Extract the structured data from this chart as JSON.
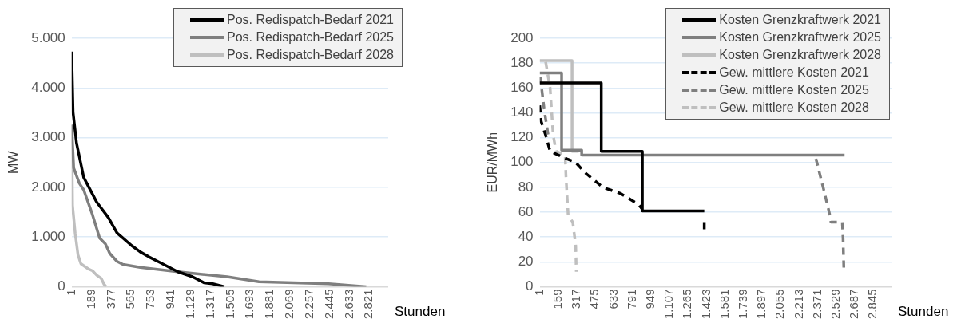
{
  "chart_data": [
    {
      "type": "line",
      "xlabel": "Stunden",
      "ylabel": "MW",
      "xlim": [
        1,
        3000
      ],
      "ylim": [
        0,
        5000
      ],
      "xticks": [
        1,
        189,
        377,
        565,
        753,
        941,
        {
          "value": 1129,
          "label": "1.129"
        },
        {
          "value": 1317,
          "label": "1.317"
        },
        {
          "value": 1505,
          "label": "1.505"
        },
        {
          "value": 1693,
          "label": "1.693"
        },
        {
          "value": 1881,
          "label": "1.881"
        },
        {
          "value": 2069,
          "label": "2.069"
        },
        {
          "value": 2257,
          "label": "2.257"
        },
        {
          "value": 2445,
          "label": "2.445"
        },
        {
          "value": 2633,
          "label": "2.633"
        },
        {
          "value": 2821,
          "label": "2.821"
        }
      ],
      "yticks": [
        0,
        {
          "value": 1000,
          "label": "1.000"
        },
        {
          "value": 2000,
          "label": "2.000"
        },
        {
          "value": 3000,
          "label": "3.000"
        },
        {
          "value": 4000,
          "label": "4.000"
        },
        {
          "value": 5000,
          "label": "5.000"
        }
      ],
      "grid": "y",
      "legend": "top right",
      "series": [
        {
          "name": "Pos. Redispatch-Bedarf 2021",
          "color": "#000000",
          "x": [
            1,
            14,
            47,
            115,
            239,
            349,
            431,
            568,
            651,
            733,
            843,
            1007,
            1145,
            1254,
            1337,
            1447
          ],
          "values": [
            4730,
            3510,
            2890,
            2200,
            1700,
            1390,
            1080,
            830,
            700,
            600,
            480,
            300,
            200,
            80,
            60,
            0
          ]
        },
        {
          "name": "Pos. Redispatch-Bedarf 2025",
          "color": "#7f7f7f",
          "x": [
            1,
            20,
            74,
            115,
            198,
            266,
            321,
            362,
            431,
            486,
            651,
            1007,
            1474,
            1776,
            2435,
            2792
          ],
          "values": [
            3260,
            2390,
            2080,
            1950,
            1450,
            980,
            860,
            670,
            510,
            450,
            390,
            300,
            200,
            100,
            60,
            0
          ]
        },
        {
          "name": "Pos. Redispatch-Bedarf 2028",
          "color": "#bfbfbf",
          "x": [
            1,
            9,
            34,
            61,
            89,
            157,
            198,
            239,
            280,
            308,
            327
          ],
          "values": [
            3260,
            1640,
            1080,
            640,
            460,
            360,
            320,
            230,
            170,
            50,
            0
          ]
        }
      ]
    },
    {
      "type": "line",
      "xlabel": "Stunden",
      "ylabel": "EUR/MWh",
      "xlim": [
        1,
        3000
      ],
      "ylim": [
        0,
        200
      ],
      "xticks": [
        1,
        159,
        317,
        475,
        633,
        791,
        949,
        {
          "value": 1107,
          "label": "1.107"
        },
        {
          "value": 1265,
          "label": "1.265"
        },
        {
          "value": 1423,
          "label": "1.423"
        },
        {
          "value": 1581,
          "label": "1.581"
        },
        {
          "value": 1739,
          "label": "1.739"
        },
        {
          "value": 1897,
          "label": "1.897"
        },
        {
          "value": 2055,
          "label": "2.055"
        },
        {
          "value": 2213,
          "label": "2.213"
        },
        {
          "value": 2371,
          "label": "2.371"
        },
        {
          "value": 2529,
          "label": "2.529"
        },
        {
          "value": 2687,
          "label": "2.687"
        },
        {
          "value": 2845,
          "label": "2.845"
        }
      ],
      "yticks": [
        0,
        20,
        40,
        60,
        80,
        100,
        120,
        140,
        160,
        180,
        200
      ],
      "grid": "y",
      "legend": "top right",
      "series": [
        {
          "name": "Kosten Grenzkraftwerk 2021",
          "type": "step",
          "color": "#000000",
          "x": [
            1,
            526,
            876,
            1404
          ],
          "values": [
            164,
            109,
            61,
            61
          ]
        },
        {
          "name": "Kosten Grenzkraftwerk 2025",
          "type": "step",
          "color": "#7f7f7f",
          "x": [
            1,
            188,
            359,
            2600
          ],
          "values": [
            172,
            110,
            106,
            106
          ]
        },
        {
          "name": "Kosten Grenzkraftwerk 2028",
          "type": "step",
          "color": "#bfbfbf",
          "x": [
            1,
            277,
            333
          ],
          "values": [
            182,
            109,
            109
          ]
        },
        {
          "name": "Gew. mittlere Kosten 2021",
          "line_style": "dashed",
          "color": "#000000",
          "x": [
            1,
            14,
            52,
            90,
            231,
            308,
            385,
            539,
            692,
            846,
            871,
            1000,
            1404,
            1404
          ],
          "values": [
            146,
            133,
            122,
            109,
            103,
            100,
            92,
            80,
            75,
            66,
            63,
            null,
            52,
            45
          ]
        },
        {
          "name": "Gew. mittlere Kosten 2025",
          "line_style": "dashed",
          "color": "#7f7f7f",
          "x": [
            6,
            39,
            78,
            200,
            2356,
            2420,
            2471,
            2484,
            2581,
            2587,
            2594
          ],
          "values": [
            169,
            143,
            119,
            null,
            103,
            79,
            59,
            52,
            52,
            39,
            13
          ]
        },
        {
          "name": "Gew. mittlere Kosten 2028",
          "line_style": "dashed",
          "color": "#bfbfbf",
          "x": [
            52,
            90,
            116,
            141,
            218,
            226,
            244,
            283,
            308,
            313
          ],
          "values": [
            181,
            160,
            122,
            109,
            106,
            87,
            57,
            52,
            33,
            12
          ]
        }
      ]
    }
  ]
}
